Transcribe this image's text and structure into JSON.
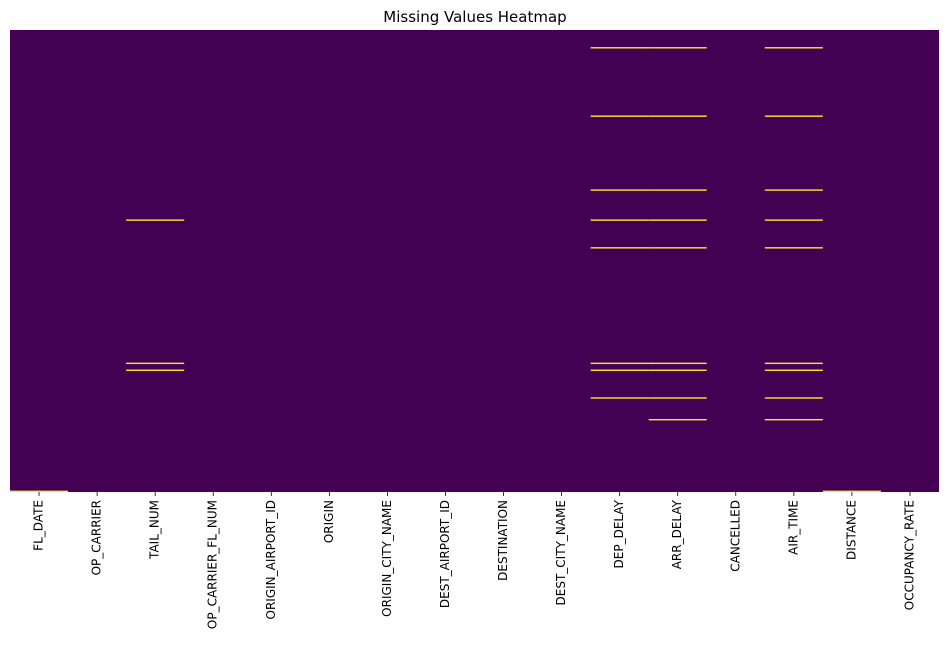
{
  "chart_data": {
    "type": "heatmap",
    "title": "Missing Values Heatmap",
    "xlabel": "",
    "ylabel": "",
    "columns": [
      "FL_DATE",
      "OP_CARRIER",
      "TAIL_NUM",
      "OP_CARRIER_FL_NUM",
      "ORIGIN_AIRPORT_ID",
      "ORIGIN",
      "ORIGIN_CITY_NAME",
      "DEST_AIRPORT_ID",
      "DESTINATION",
      "DEST_CITY_NAME",
      "DEP_DELAY",
      "ARR_DELAY",
      "CANCELLED",
      "AIR_TIME",
      "DISTANCE",
      "OCCUPANCY_RATE"
    ],
    "row_range": [
      0,
      1
    ],
    "missing_rows_fraction": {
      "FL_DATE": [
        0.998
      ],
      "OP_CARRIER": [],
      "TAIL_NUM": [
        0.41,
        0.72,
        0.735
      ],
      "OP_CARRIER_FL_NUM": [],
      "ORIGIN_AIRPORT_ID": [],
      "ORIGIN": [],
      "ORIGIN_CITY_NAME": [],
      "DEST_AIRPORT_ID": [],
      "DESTINATION": [],
      "DEST_CITY_NAME": [],
      "DEP_DELAY": [
        0.037,
        0.185,
        0.345,
        0.41,
        0.47,
        0.72,
        0.735,
        0.795
      ],
      "ARR_DELAY": [
        0.037,
        0.185,
        0.345,
        0.41,
        0.47,
        0.72,
        0.735,
        0.795,
        0.842
      ],
      "CANCELLED": [],
      "AIR_TIME": [
        0.037,
        0.185,
        0.345,
        0.41,
        0.47,
        0.72,
        0.735,
        0.795,
        0.842
      ],
      "DISTANCE": [
        0.998
      ],
      "OCCUPANCY_RATE": []
    },
    "colors": {
      "present": "#440154",
      "missing": "#fde725"
    },
    "colorbar": false,
    "grid": false
  }
}
